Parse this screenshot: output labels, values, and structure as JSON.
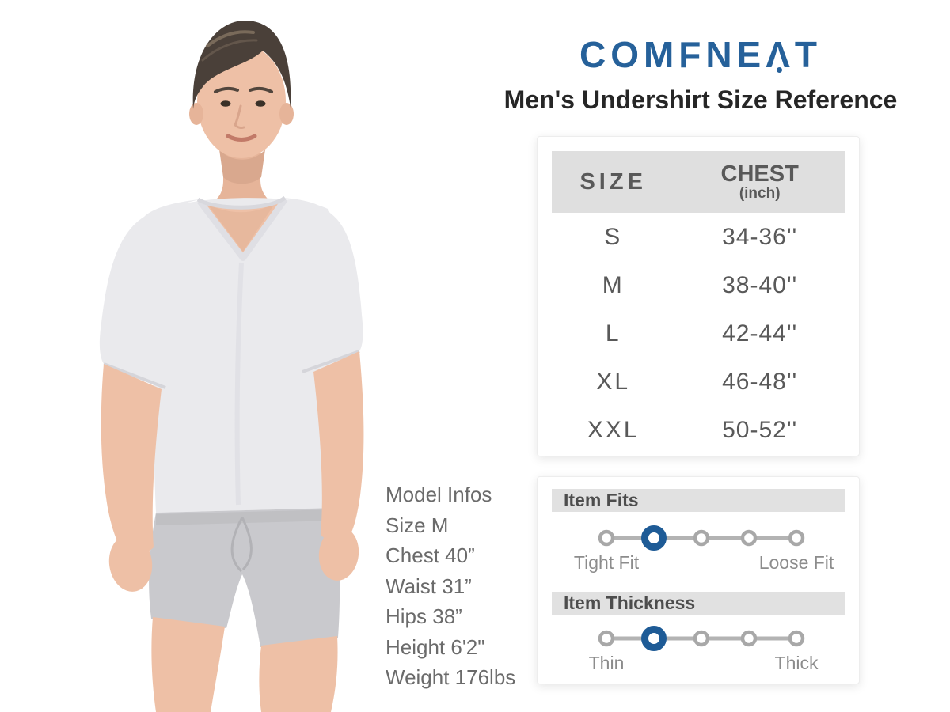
{
  "brand": {
    "name": "COMFNEAT",
    "logo_pre": "COMFNE",
    "logo_a": "Λ",
    "logo_post": "T",
    "color": "#26619A"
  },
  "header": {
    "title": "Men's Undershirt Size Reference"
  },
  "size_table": {
    "col_size": "SIZE",
    "col_chest": "CHEST",
    "col_chest_unit": "(inch)",
    "rows": [
      {
        "size": "S",
        "chest": "34-36''"
      },
      {
        "size": "M",
        "chest": "38-40''"
      },
      {
        "size": "L",
        "chest": "42-44''"
      },
      {
        "size": "XL",
        "chest": "46-48''"
      },
      {
        "size": "XXL",
        "chest": "50-52''"
      }
    ]
  },
  "model_info": {
    "lines": [
      "Model Infos",
      "Size M",
      "Chest 40”",
      "Waist 31”",
      "Hips 38”",
      "Height 6'2\"",
      "Weight 176lbs"
    ]
  },
  "item_fits": {
    "title": "Item Fits",
    "left_label": "Tight Fit",
    "right_label": "Loose Fit",
    "num_points": 5,
    "selected_index": 1
  },
  "item_thickness": {
    "title": "Item Thickness",
    "left_label": "Thin",
    "right_label": "Thick",
    "num_points": 5,
    "selected_index": 1
  },
  "colors": {
    "accent_blue": "#1E5B96",
    "dot_gray": "#A8A8A8",
    "line_gray": "#B3B3B3",
    "header_bar_gray": "#DFDFDF"
  }
}
